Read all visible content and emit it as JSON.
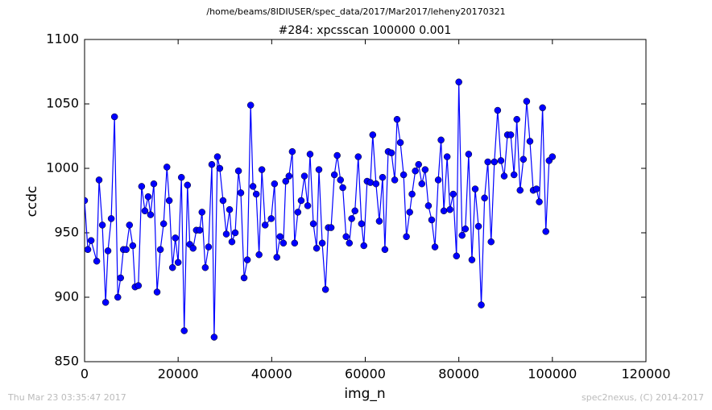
{
  "chart_data": {
    "type": "line",
    "path": "/home/beams/8IDIUSER/spec_data/2017/Mar2017/leheny20170321",
    "title": "#284: xpcsscan 100000 0.001",
    "x_label": "img_n",
    "y_label": "ccdc",
    "footer_left": "Thu Mar 23 03:35:47 2017",
    "footer_right": "spec2nexus, (C) 2014-2017",
    "xlim": [
      0,
      120000
    ],
    "xticks": [
      0,
      20000,
      40000,
      60000,
      80000,
      100000,
      120000
    ],
    "ylim": [
      850,
      1100
    ],
    "yticks": [
      850,
      900,
      950,
      1000,
      1050,
      1100
    ],
    "series": [
      {
        "name": "ccdc",
        "color": "#0000ff",
        "x": [
          0,
          700,
          1400,
          2600,
          3100,
          3800,
          4500,
          5000,
          5700,
          6400,
          7100,
          7700,
          8300,
          8900,
          9600,
          10300,
          10800,
          11500,
          12200,
          12900,
          13600,
          14100,
          14800,
          15500,
          16200,
          16900,
          17600,
          18100,
          18800,
          19400,
          20000,
          20700,
          21300,
          22000,
          22500,
          23200,
          23900,
          24600,
          25100,
          25800,
          26500,
          27200,
          27700,
          28400,
          28900,
          29600,
          30300,
          31000,
          31500,
          32200,
          32900,
          33400,
          34100,
          34800,
          35500,
          36000,
          36700,
          37300,
          37900,
          38600,
          39900,
          40600,
          41100,
          41800,
          42500,
          43000,
          43700,
          44400,
          44900,
          45600,
          46300,
          47000,
          47700,
          48200,
          48900,
          49600,
          50100,
          50800,
          51500,
          52100,
          52700,
          53400,
          54000,
          54700,
          55200,
          55900,
          56600,
          57100,
          57800,
          58500,
          59200,
          59700,
          60400,
          61100,
          61600,
          62300,
          63000,
          63700,
          64200,
          64900,
          65600,
          66300,
          66800,
          67500,
          68200,
          68800,
          69500,
          70000,
          70700,
          71400,
          72100,
          72800,
          73500,
          74200,
          74900,
          75600,
          76200,
          76800,
          77500,
          78100,
          78800,
          79500,
          80000,
          80700,
          81400,
          82100,
          82800,
          83500,
          84200,
          84800,
          85500,
          86200,
          86900,
          87600,
          88300,
          89000,
          89700,
          90400,
          91100,
          91800,
          92400,
          93100,
          93800,
          94500,
          95200,
          95900,
          96600,
          97200,
          97900,
          98600,
          99300,
          100000
        ],
        "values": [
          975,
          937,
          944,
          928,
          991,
          956,
          896,
          936,
          961,
          1040,
          900,
          915,
          937,
          937,
          956,
          940,
          908,
          909,
          986,
          967,
          978,
          964,
          988,
          904,
          937,
          957,
          1001,
          975,
          923,
          946,
          927,
          993,
          874,
          987,
          941,
          938,
          952,
          952,
          966,
          923,
          939,
          1003,
          869,
          1009,
          1000,
          975,
          949,
          968,
          943,
          950,
          998,
          981,
          915,
          929,
          1049,
          986,
          980,
          933,
          999,
          956,
          961,
          988,
          931,
          947,
          942,
          990,
          994,
          1013,
          942,
          966,
          975,
          994,
          971,
          1011,
          957,
          938,
          999,
          942,
          906,
          954,
          954,
          995,
          1010,
          991,
          985,
          947,
          942,
          961,
          967,
          1009,
          957,
          940,
          990,
          989,
          1026,
          988,
          959,
          993,
          937,
          1013,
          1012,
          991,
          1038,
          1020,
          995,
          947,
          966,
          980,
          998,
          1003,
          988,
          999,
          971,
          960,
          939,
          991,
          1022,
          967,
          1009,
          968,
          980,
          932,
          1067,
          948,
          953,
          1011,
          929,
          984,
          955,
          894,
          977,
          1005,
          943,
          1005,
          1045,
          1006,
          994,
          1026,
          1026,
          995,
          1038,
          983,
          1007,
          1052,
          1021,
          983,
          984,
          974,
          1047,
          951,
          1006,
          1009
        ]
      }
    ]
  }
}
